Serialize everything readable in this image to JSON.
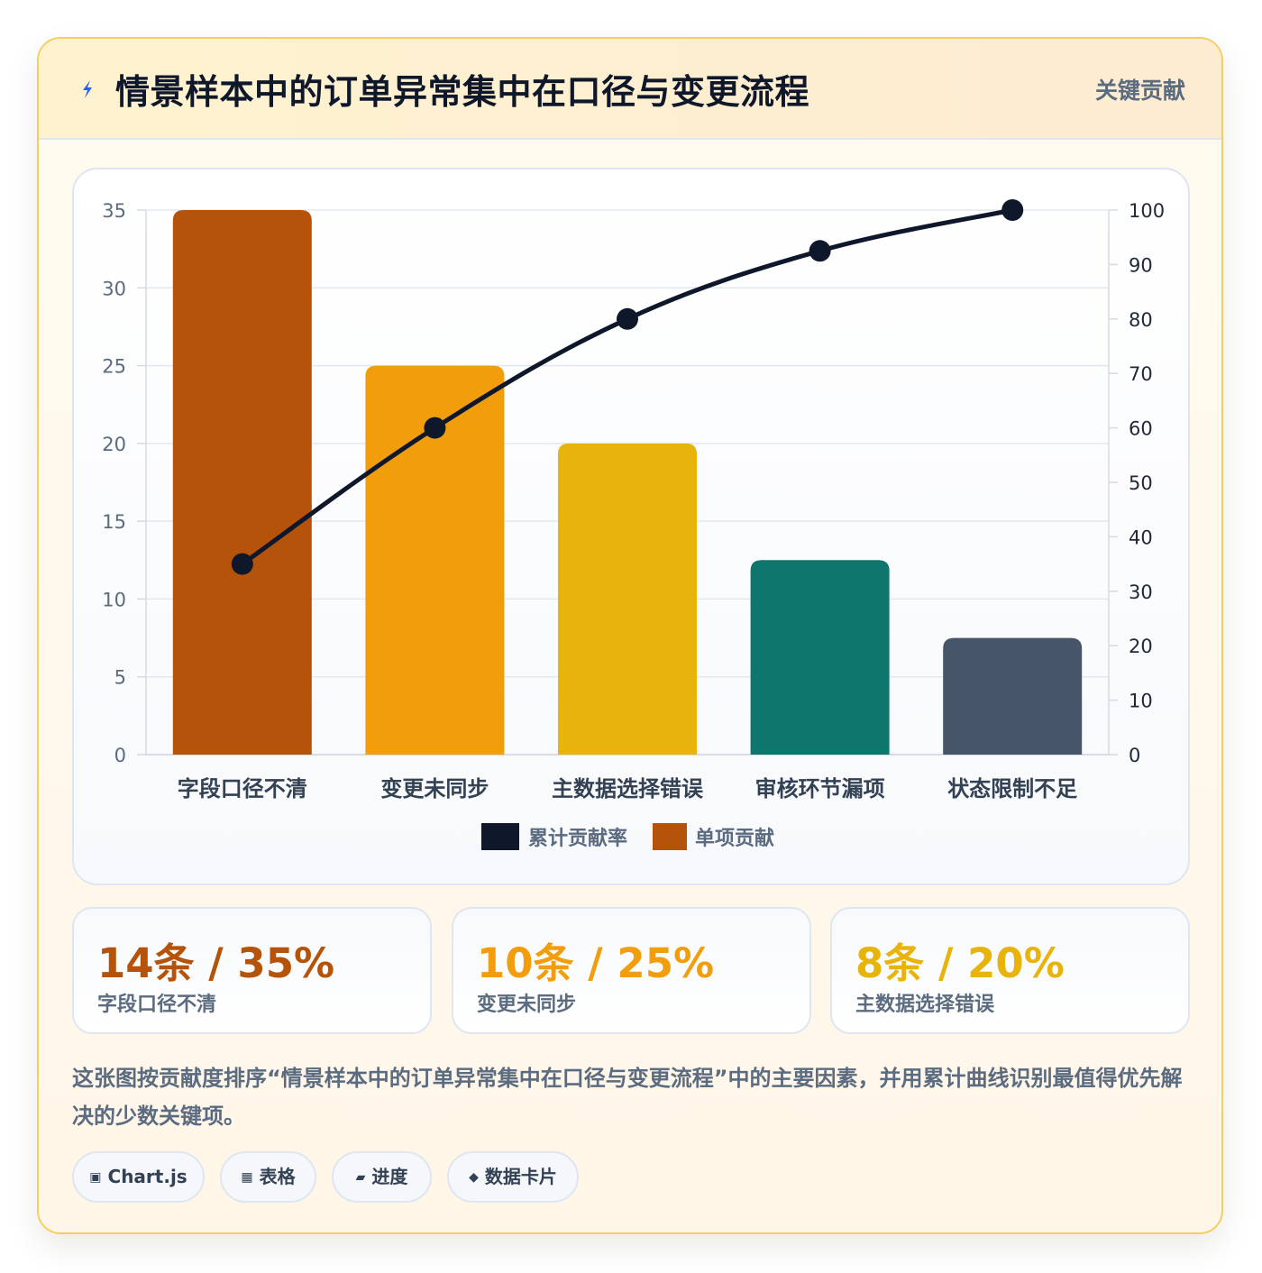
{
  "header": {
    "title": "情景样本中的订单异常集中在口径与变更流程",
    "badge": "关键贡献",
    "icon": "lightning-icon"
  },
  "chart_data": {
    "type": "bar",
    "categories": [
      "字段口径不清",
      "变更未同步",
      "主数据选择错误",
      "审核环节漏项",
      "状态限制不足"
    ],
    "series": [
      {
        "name": "单项贡献",
        "type": "bar",
        "axis": "left",
        "values": [
          35,
          25,
          20,
          12.5,
          7.5
        ]
      },
      {
        "name": "累计贡献率",
        "type": "line",
        "axis": "right",
        "values": [
          35,
          60,
          80,
          92.5,
          100
        ]
      }
    ],
    "bar_colors": [
      "#b45309",
      "#f29e0c",
      "#e8b30a",
      "#0f766e",
      "#475569"
    ],
    "line_color": "#0f172a",
    "legend": [
      "累计贡献率",
      "单项贡献"
    ],
    "legend_position": "bottom",
    "ylim_left": [
      0,
      35
    ],
    "ylim_right": [
      0,
      100
    ],
    "yticks_left": [
      0,
      5,
      10,
      15,
      20,
      25,
      30,
      35
    ],
    "yticks_right": [
      0,
      10,
      20,
      30,
      40,
      50,
      60,
      70,
      80,
      90,
      100
    ],
    "grid": true
  },
  "stats": [
    {
      "value": "14条 / 35%",
      "label": "字段口径不清",
      "color": "#b45309"
    },
    {
      "value": "10条 / 25%",
      "label": "变更未同步",
      "color": "#f29e0c"
    },
    {
      "value": "8条 / 20%",
      "label": "主数据选择错误",
      "color": "#e8b30a"
    }
  ],
  "summary": "这张图按贡献度排序“情景样本中的订单异常集中在口径与变更流程”中的主要因素，并用累计曲线识别最值得优先解决的少数关键项。",
  "tags": [
    {
      "icon": "▣",
      "label": "Chart.js"
    },
    {
      "icon": "▦",
      "label": "表格"
    },
    {
      "icon": "▰",
      "label": "进度"
    },
    {
      "icon": "◆",
      "label": "数据卡片"
    }
  ]
}
